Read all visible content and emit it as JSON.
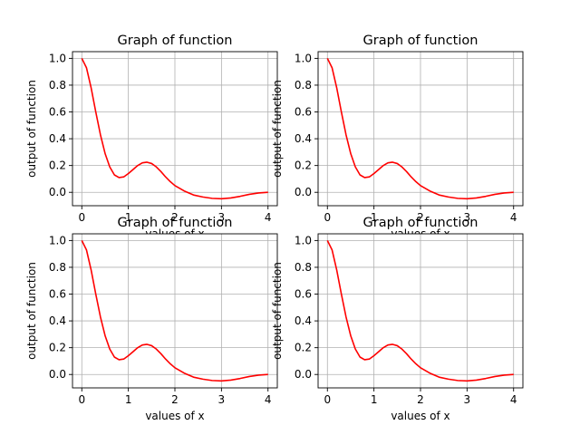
{
  "chart_data": [
    {
      "type": "line",
      "title": "Graph of function",
      "xlabel": "values of x",
      "ylabel": "output of function",
      "xlim": [
        -0.2,
        4.2
      ],
      "ylim": [
        -0.1,
        1.05
      ],
      "xticks": [
        0,
        1,
        2,
        3,
        4
      ],
      "yticks": [
        0.0,
        0.2,
        0.4,
        0.6,
        0.8,
        1.0
      ],
      "xtick_labels": [
        "0",
        "1",
        "2",
        "3",
        "4"
      ],
      "ytick_labels": [
        "0.0",
        "0.2",
        "0.4",
        "0.6",
        "0.8",
        "1.0"
      ],
      "grid": true,
      "series": [
        {
          "color": "#ff0000",
          "x": [
            0,
            0.1,
            0.2,
            0.3,
            0.4,
            0.5,
            0.6,
            0.7,
            0.8,
            0.9,
            1.0,
            1.1,
            1.2,
            1.3,
            1.4,
            1.5,
            1.6,
            1.7,
            1.8,
            1.9,
            2.0,
            2.2,
            2.4,
            2.6,
            2.8,
            3.0,
            3.2,
            3.4,
            3.6,
            3.8,
            4.0
          ],
          "y": [
            1.0,
            0.93,
            0.78,
            0.6,
            0.43,
            0.29,
            0.19,
            0.13,
            0.11,
            0.115,
            0.14,
            0.17,
            0.2,
            0.22,
            0.225,
            0.215,
            0.19,
            0.155,
            0.115,
            0.08,
            0.05,
            0.01,
            -0.02,
            -0.035,
            -0.045,
            -0.048,
            -0.042,
            -0.03,
            -0.015,
            -0.005,
            0.0
          ]
        }
      ]
    },
    {
      "type": "line",
      "title": "Graph of function",
      "xlabel": "values of x",
      "ylabel": "output of function",
      "xlim": [
        -0.2,
        4.2
      ],
      "ylim": [
        -0.1,
        1.05
      ],
      "xticks": [
        0,
        1,
        2,
        3,
        4
      ],
      "yticks": [
        0.0,
        0.2,
        0.4,
        0.6,
        0.8,
        1.0
      ],
      "xtick_labels": [
        "0",
        "1",
        "2",
        "3",
        "4"
      ],
      "ytick_labels": [
        "0.0",
        "0.2",
        "0.4",
        "0.6",
        "0.8",
        "1.0"
      ],
      "grid": true,
      "series": [
        {
          "color": "#ff0000",
          "x": [
            0,
            0.1,
            0.2,
            0.3,
            0.4,
            0.5,
            0.6,
            0.7,
            0.8,
            0.9,
            1.0,
            1.1,
            1.2,
            1.3,
            1.4,
            1.5,
            1.6,
            1.7,
            1.8,
            1.9,
            2.0,
            2.2,
            2.4,
            2.6,
            2.8,
            3.0,
            3.2,
            3.4,
            3.6,
            3.8,
            4.0
          ],
          "y": [
            1.0,
            0.93,
            0.78,
            0.6,
            0.43,
            0.29,
            0.19,
            0.13,
            0.11,
            0.115,
            0.14,
            0.17,
            0.2,
            0.22,
            0.225,
            0.215,
            0.19,
            0.155,
            0.115,
            0.08,
            0.05,
            0.01,
            -0.02,
            -0.035,
            -0.045,
            -0.048,
            -0.042,
            -0.03,
            -0.015,
            -0.005,
            0.0
          ]
        }
      ]
    },
    {
      "type": "line",
      "title": "Graph of function",
      "xlabel": "values of x",
      "ylabel": "output of function",
      "xlim": [
        -0.2,
        4.2
      ],
      "ylim": [
        -0.1,
        1.05
      ],
      "xticks": [
        0,
        1,
        2,
        3,
        4
      ],
      "yticks": [
        0.0,
        0.2,
        0.4,
        0.6,
        0.8,
        1.0
      ],
      "xtick_labels": [
        "0",
        "1",
        "2",
        "3",
        "4"
      ],
      "ytick_labels": [
        "0.0",
        "0.2",
        "0.4",
        "0.6",
        "0.8",
        "1.0"
      ],
      "grid": true,
      "series": [
        {
          "color": "#ff0000",
          "x": [
            0,
            0.1,
            0.2,
            0.3,
            0.4,
            0.5,
            0.6,
            0.7,
            0.8,
            0.9,
            1.0,
            1.1,
            1.2,
            1.3,
            1.4,
            1.5,
            1.6,
            1.7,
            1.8,
            1.9,
            2.0,
            2.2,
            2.4,
            2.6,
            2.8,
            3.0,
            3.2,
            3.4,
            3.6,
            3.8,
            4.0
          ],
          "y": [
            1.0,
            0.93,
            0.78,
            0.6,
            0.43,
            0.29,
            0.19,
            0.13,
            0.11,
            0.115,
            0.14,
            0.17,
            0.2,
            0.22,
            0.225,
            0.215,
            0.19,
            0.155,
            0.115,
            0.08,
            0.05,
            0.01,
            -0.02,
            -0.035,
            -0.045,
            -0.048,
            -0.042,
            -0.03,
            -0.015,
            -0.005,
            0.0
          ]
        }
      ]
    },
    {
      "type": "line",
      "title": "Graph of function",
      "xlabel": "values of x",
      "ylabel": "output of function",
      "xlim": [
        -0.2,
        4.2
      ],
      "ylim": [
        -0.1,
        1.05
      ],
      "xticks": [
        0,
        1,
        2,
        3,
        4
      ],
      "yticks": [
        0.0,
        0.2,
        0.4,
        0.6,
        0.8,
        1.0
      ],
      "xtick_labels": [
        "0",
        "1",
        "2",
        "3",
        "4"
      ],
      "ytick_labels": [
        "0.0",
        "0.2",
        "0.4",
        "0.6",
        "0.8",
        "1.0"
      ],
      "grid": true,
      "series": [
        {
          "color": "#ff0000",
          "x": [
            0,
            0.1,
            0.2,
            0.3,
            0.4,
            0.5,
            0.6,
            0.7,
            0.8,
            0.9,
            1.0,
            1.1,
            1.2,
            1.3,
            1.4,
            1.5,
            1.6,
            1.7,
            1.8,
            1.9,
            2.0,
            2.2,
            2.4,
            2.6,
            2.8,
            3.0,
            3.2,
            3.4,
            3.6,
            3.8,
            4.0
          ],
          "y": [
            1.0,
            0.93,
            0.78,
            0.6,
            0.43,
            0.29,
            0.19,
            0.13,
            0.11,
            0.115,
            0.14,
            0.17,
            0.2,
            0.22,
            0.225,
            0.215,
            0.19,
            0.155,
            0.115,
            0.08,
            0.05,
            0.01,
            -0.02,
            -0.035,
            -0.045,
            -0.048,
            -0.042,
            -0.03,
            -0.015,
            -0.005,
            0.0
          ]
        }
      ]
    }
  ]
}
